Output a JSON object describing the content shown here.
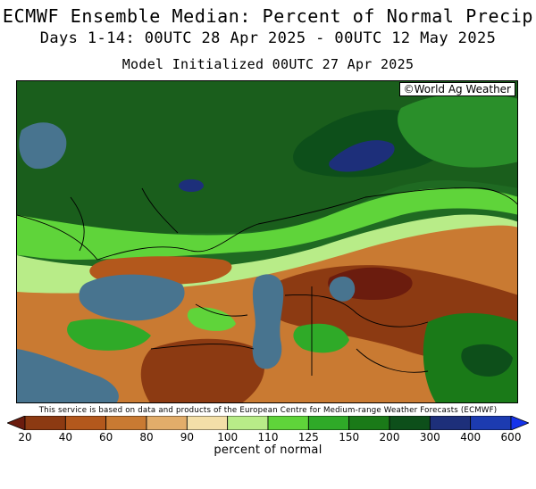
{
  "header": {
    "title": "ECMWF Ensemble Median: Percent of Normal Precip",
    "subtitle": "Days 1-14: 00UTC 28 Apr 2025 - 00UTC 12 May 2025",
    "init": "Model Initialized 00UTC 27 Apr 2025"
  },
  "map": {
    "copyright": "©World Ag Weather",
    "source_note": "This service is based on data and products of the European Centre for Medium-range Weather Forecasts (ECMWF)"
  },
  "legend": {
    "unit_label": "percent of normal",
    "ticks": [
      "20",
      "40",
      "60",
      "80",
      "90",
      "100",
      "110",
      "125",
      "150",
      "200",
      "300",
      "400",
      "600"
    ],
    "colors": [
      "#6b1c0e",
      "#8c3a12",
      "#b3581c",
      "#c97a32",
      "#e2ad6a",
      "#f3dfa8",
      "#b8ec88",
      "#5fd43a",
      "#2faa28",
      "#1a7a18",
      "#0d4f1a",
      "#1d2f7a",
      "#1c3bb0",
      "#1533ea"
    ]
  }
}
